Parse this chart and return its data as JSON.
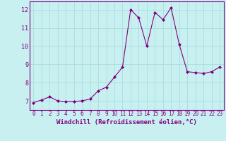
{
  "x": [
    0,
    1,
    2,
    3,
    4,
    5,
    6,
    7,
    8,
    9,
    10,
    11,
    12,
    13,
    14,
    15,
    16,
    17,
    18,
    19,
    20,
    21,
    22,
    23
  ],
  "y": [
    6.9,
    7.05,
    7.22,
    7.0,
    6.95,
    6.97,
    7.0,
    7.1,
    7.55,
    7.75,
    8.3,
    8.85,
    12.0,
    11.55,
    10.0,
    11.85,
    11.45,
    12.1,
    10.1,
    8.6,
    8.55,
    8.5,
    8.6,
    8.85
  ],
  "line_color": "#800080",
  "marker": "D",
  "marker_size": 2.0,
  "xlabel": "Windchill (Refroidissement éolien,°C)",
  "xlabel_fontsize": 6.5,
  "xlabel_color": "#800080",
  "ylabel_ticks": [
    7,
    8,
    9,
    10,
    11,
    12
  ],
  "xticks": [
    0,
    1,
    2,
    3,
    4,
    5,
    6,
    7,
    8,
    9,
    10,
    11,
    12,
    13,
    14,
    15,
    16,
    17,
    18,
    19,
    20,
    21,
    22,
    23
  ],
  "ylim": [
    6.5,
    12.45
  ],
  "xlim": [
    -0.5,
    23.5
  ],
  "background_color": "#c8f0f0",
  "grid_color": "#aadddd",
  "tick_label_fontsize": 5.5,
  "tick_color": "#800080",
  "tick_label_color": "#800080",
  "spine_color": "#800080",
  "linewidth": 0.8
}
